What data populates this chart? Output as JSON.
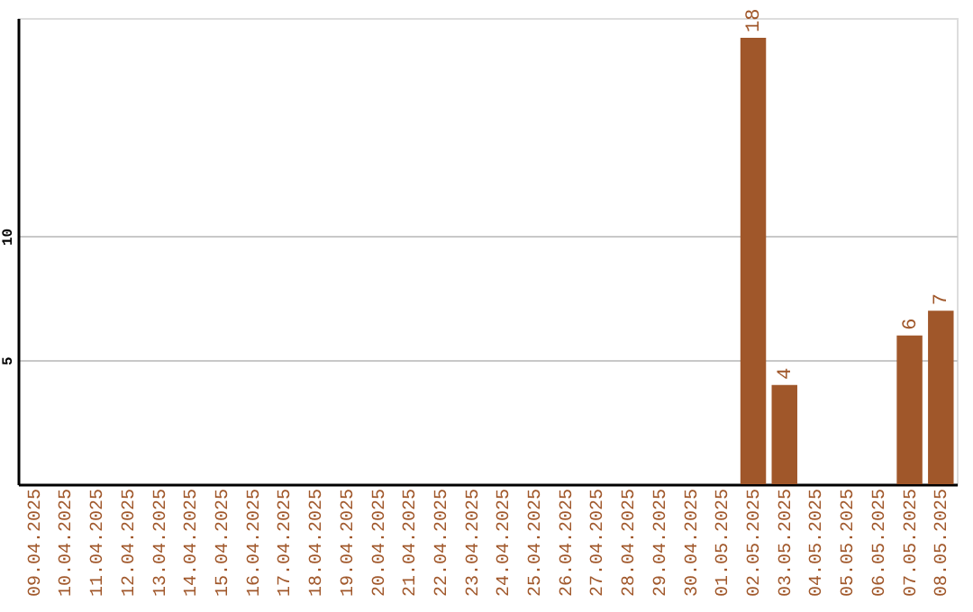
{
  "chart_data": {
    "type": "bar",
    "categories": [
      "09.04.2025",
      "10.04.2025",
      "11.04.2025",
      "12.04.2025",
      "13.04.2025",
      "14.04.2025",
      "15.04.2025",
      "16.04.2025",
      "17.04.2025",
      "18.04.2025",
      "19.04.2025",
      "20.04.2025",
      "21.04.2025",
      "22.04.2025",
      "23.04.2025",
      "24.04.2025",
      "25.04.2025",
      "26.04.2025",
      "27.04.2025",
      "28.04.2025",
      "29.04.2025",
      "30.04.2025",
      "01.05.2025",
      "02.05.2025",
      "03.05.2025",
      "04.05.2025",
      "05.05.2025",
      "06.05.2025",
      "07.05.2025",
      "08.05.2025"
    ],
    "values": [
      0,
      0,
      0,
      0,
      0,
      0,
      0,
      0,
      0,
      0,
      0,
      0,
      0,
      0,
      0,
      0,
      0,
      0,
      0,
      0,
      0,
      0,
      0,
      18,
      4,
      0,
      0,
      0,
      6,
      7
    ],
    "value_labels": [
      null,
      null,
      null,
      null,
      null,
      null,
      null,
      null,
      null,
      null,
      null,
      null,
      null,
      null,
      null,
      null,
      null,
      null,
      null,
      null,
      null,
      null,
      null,
      "18",
      "4",
      null,
      null,
      null,
      "6",
      "7"
    ],
    "color": "#a0572a",
    "ylim": [
      0,
      18.8
    ],
    "yticks": [
      5,
      10
    ],
    "grid": "y"
  }
}
